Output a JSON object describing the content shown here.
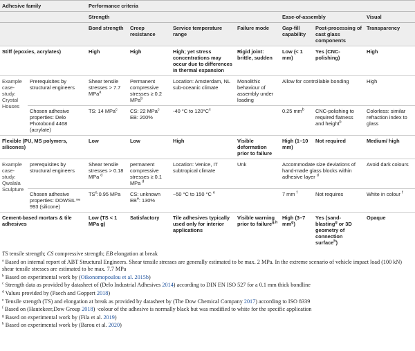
{
  "header": {
    "adhesive_family": "Adhesive family",
    "performance_criteria": "Performance criteria",
    "groups": [
      "Strength",
      "Ease-of-assembly",
      "Visual"
    ],
    "columns": [
      "Bond strength",
      "Creep resistance",
      "Service temperature range",
      "Failure mode",
      "Gap-fill capability",
      "Post-processing of cast glass components",
      "Transparency"
    ]
  },
  "table": {
    "rows": [
      [
        [
          "Stiff (epoxies, acrylates)"
        ],
        [
          "High"
        ],
        [
          "High"
        ],
        [
          "High; yet stress concentrations may occur due to differences in thermal expansion"
        ],
        [
          "Rigid joint: brittle, sudden"
        ],
        [
          "Low (< 1 mm)"
        ],
        [
          "Yes (CNC-polishing)"
        ],
        [
          "High"
        ]
      ],
      [
        [
          "Example case-study: Crystal Houses"
        ],
        [
          "Prerequisites by structural engineers"
        ],
        [
          "Shear tensile stresses > 7.7 MPa",
          {
            "sup": "a"
          }
        ],
        [
          "Permanent compressive stresses ≥ 0.2 MPa",
          {
            "sup": "b"
          }
        ],
        [
          "Location: Amsterdam, NL sub-oceanic climate"
        ],
        [
          "Monolithic behaviour of assembly under loading"
        ],
        [
          "Allow for controllable bonding"
        ],
        [
          "High"
        ]
      ],
      [
        [
          "Chosen adhesive properties: Delo Photobond 4468 (acrylate)"
        ],
        [
          "TS: 14 MPa",
          {
            "sup": "c"
          }
        ],
        [
          "CS: 22 MPa",
          {
            "sup": "c"
          },
          " EB: 200%"
        ],
        [
          "-40 °C to 120°C",
          {
            "sup": "c"
          }
        ],
        [
          "0.25 mm",
          {
            "sup": "b"
          }
        ],
        [
          "CNC-polishing to required flatness and height",
          {
            "sup": "b"
          }
        ],
        [
          "Colorless: similar refraction index to glass"
        ]
      ],
      [
        [
          "Flexible (PU, MS polymers, silicones)"
        ],
        [
          "Low"
        ],
        [
          "Low"
        ],
        [
          "High"
        ],
        [
          "Visible deformation prior to failure"
        ],
        [
          "High (1–10 mm)"
        ],
        [
          "Not required"
        ],
        [
          "Medium/ high"
        ]
      ],
      [
        [
          "Example case-study: Qwalala Sculpture"
        ],
        [
          "prerequisites by structural engineers"
        ],
        [
          "Shear tensile stresses > 0.18 MPa ",
          {
            "sup": "d"
          }
        ],
        [
          "permanent compressive stresses ≥ 0.1 MPa ",
          {
            "sup": "d"
          }
        ],
        [
          "Location: Venice, IT subtropical climate"
        ],
        [
          "Unk"
        ],
        [
          "Accommodate size deviations of hand-made glass blocks within adhesive layer ",
          {
            "sup": "d"
          }
        ],
        [
          "Avoid dark colours"
        ]
      ],
      [
        [
          "Chosen adhesive properties: DOWSIL™ 993 (silicone)"
        ],
        [
          "TS",
          {
            "sup": "e"
          },
          ":0.95 MPa"
        ],
        [
          "CS: unknown EB",
          {
            "sup": "e"
          },
          ": 130%"
        ],
        [
          "−50 °C to 150 °C ",
          {
            "sup": "e"
          }
        ],
        [
          "7 mm ",
          {
            "sup": "f"
          }
        ],
        [
          "Not requires"
        ],
        [
          "White in colour ",
          {
            "sup": "f"
          }
        ]
      ],
      [
        [
          "Cement-based mortars & tile adhesives"
        ],
        [
          "Low (TS < 1 MPa g)"
        ],
        [
          "Satisfactory"
        ],
        [
          "Tile adhesives typically used only for interior applications"
        ],
        [
          "Visible warning prior to failure",
          {
            "sup": "g,h"
          }
        ],
        [
          "High (3–7 mm",
          {
            "sup": "g"
          },
          ")"
        ],
        [
          "Yes (sand-blasting",
          {
            "sup": "g"
          },
          " or 3D geometry of connection surface",
          {
            "sup": "h"
          },
          ")"
        ],
        [
          "Opaque"
        ]
      ]
    ]
  },
  "notes": {
    "abbreviations": [
      {
        "em": "TS"
      },
      " tensile strength; ",
      {
        "em": "CS"
      },
      " compressive strength; ",
      {
        "em": "EB"
      },
      " elongation at break"
    ],
    "items": [
      {
        "mark": "a",
        "text": [
          "Based on internal report of ABT Structural Engineers. Shear tensile stresses are generally estimated to be max. 2 MPa. In the extreme scenario of vehicle impact load (100 kN) shear tensile stresses are estimated to be max. 7.7 MPa"
        ]
      },
      {
        "mark": "b",
        "text": [
          "Based on experimental work by (",
          {
            "link": "Oikonomopoulou et al. 2015b"
          },
          ")"
        ]
      },
      {
        "mark": "c",
        "text": [
          "Strength data as provided by datasheet of (Delo Industrial Adhesives ",
          {
            "link": "2014"
          },
          ") according to DIN EN ISO 527 for a 0.1 mm thick bondline"
        ]
      },
      {
        "mark": "d",
        "text": [
          "Values provided by (Paech and Goppert ",
          {
            "link": "2018"
          },
          ")"
        ]
      },
      {
        "mark": "e",
        "text": [
          "Tensile strength (TS) and elongation at break as provided by datasheet by (The Dow Chemical Company ",
          {
            "link": "2017"
          },
          ") according to ISO 8339"
        ]
      },
      {
        "mark": "f",
        "text": [
          "Based on (Hautekeer,Dow Group ",
          {
            "link": "2018"
          },
          ") ·colour of the adhesive is normally black but was modified to white for the specific application"
        ]
      },
      {
        "mark": "g",
        "text": [
          "Based on experimental work by (Fila et al. ",
          {
            "link": "2019"
          },
          ")"
        ]
      },
      {
        "mark": "h",
        "text": [
          "Based on experimental work by (Barou et al. ",
          {
            "link": "2020"
          },
          ")"
        ]
      }
    ]
  }
}
